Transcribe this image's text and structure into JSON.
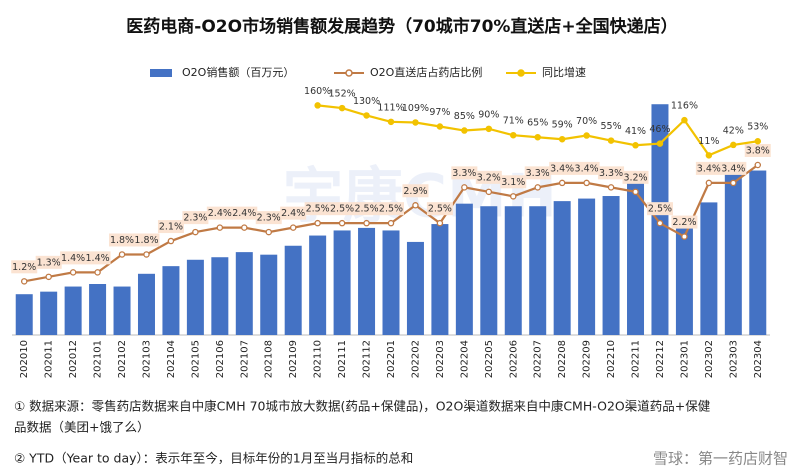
{
  "chart_data": {
    "type": "bar_line",
    "title": "医药电商-O2O市场销售额发展趋势（70城市70%直送店+全国快递店）",
    "categories": [
      "202010",
      "202011",
      "202012",
      "202101",
      "202102",
      "202103",
      "202104",
      "202105",
      "202106",
      "202107",
      "202108",
      "202109",
      "202110",
      "202111",
      "202112",
      "202201",
      "202202",
      "202203",
      "202204",
      "202205",
      "202206",
      "202207",
      "202208",
      "202209",
      "202210",
      "202211",
      "202212",
      "202301",
      "202302",
      "202303",
      "202304"
    ],
    "series": [
      {
        "name": "O2O销售额（百万元）",
        "color": "#4472c4",
        "values": [
          32,
          34,
          38,
          40,
          38,
          48,
          54,
          59,
          61,
          65,
          63,
          70,
          78,
          82,
          84,
          82,
          73,
          87,
          103,
          101,
          101,
          101,
          105,
          107,
          109,
          119,
          181,
          91,
          104,
          133,
          129
        ]
      },
      {
        "name": "O2O直送店占药店比例",
        "color": "#c07a45",
        "axis": "y2",
        "values": [
          1.2,
          1.3,
          1.4,
          1.4,
          1.8,
          1.8,
          2.1,
          2.3,
          2.4,
          2.4,
          2.3,
          2.4,
          2.5,
          2.5,
          2.5,
          2.5,
          2.9,
          2.5,
          3.3,
          3.2,
          3.1,
          3.3,
          3.4,
          3.4,
          3.3,
          3.2,
          2.5,
          2.2,
          3.4,
          3.4,
          3.8
        ],
        "value_labels": [
          "1.2%",
          "1.3%",
          "1.4%",
          "1.4%",
          "1.8%",
          "1.8%",
          "2.1%",
          "2.3%",
          "2.4%",
          "2.4%",
          "2.3%",
          "2.4%",
          "2.5%",
          "2.5%",
          "2.5%",
          "2.5%",
          "2.9%",
          "2.5%",
          "3.3%",
          "3.2%",
          "3.1%",
          "3.3%",
          "3.4%",
          "3.4%",
          "3.3%",
          "3.2%",
          "2.5%",
          "2.2%",
          "3.4%",
          "3.4%",
          "3.8%"
        ]
      },
      {
        "name": "同比增速",
        "color": "#f2c200",
        "axis": "y3",
        "values": [
          null,
          null,
          null,
          null,
          null,
          null,
          null,
          null,
          null,
          null,
          null,
          null,
          160,
          152,
          130,
          111,
          109,
          97,
          85,
          90,
          71,
          65,
          59,
          70,
          55,
          41,
          46,
          116,
          11,
          42,
          53
        ],
        "value_labels": [
          null,
          null,
          null,
          null,
          null,
          null,
          null,
          null,
          null,
          null,
          null,
          null,
          "160%",
          "152%",
          "130%",
          "111%",
          "109%",
          "97%",
          "85%",
          "90%",
          "71%",
          "65%",
          "59%",
          "70%",
          "55%",
          "41%",
          "46%",
          "116%",
          "11%",
          "42%",
          "53%"
        ]
      }
    ],
    "ylim": [
      0,
      200
    ],
    "y2lim": [
      0,
      5.7
    ],
    "y3lim": [
      0,
      200
    ],
    "notes": [
      "① 数据来源：零售药店数据来自中康CMH 70城市放大数据(药品+保健品)，O2O渠道数据来自中康CMH-O2O渠道药品+保健",
      "品数据（美团+饿了么）",
      "② YTD（Year to day）：表示年至今，目标年份的1月至当月指标的总和"
    ],
    "watermarks": [
      "宇康CMH",
      "雪球：第一药店财智"
    ]
  }
}
